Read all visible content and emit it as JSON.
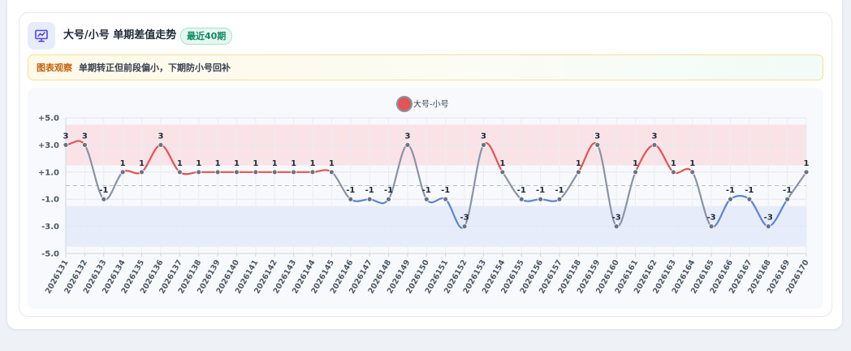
{
  "header": {
    "title": "大号/小号 单期差值走势",
    "badge": "最近40期",
    "icon": "presentation-chart-icon"
  },
  "observation": {
    "label": "图表观察",
    "text": "单期转正但前段偏小，下期防小号回补"
  },
  "colors": {
    "positive": "#e05555",
    "negative": "#5b85d6",
    "neutral": "#8a93a6",
    "positive_band": "#f9e3e6",
    "negative_band": "#e7ecfb",
    "accent": "#6366f1"
  },
  "chart_data": {
    "type": "line",
    "title": "",
    "xlabel": "",
    "ylabel": "",
    "ylim": [
      -5,
      5
    ],
    "yticks": [
      "+5.0",
      "+3.0",
      "+1.0",
      "-1.0",
      "-3.0",
      "-5.0"
    ],
    "ytick_values": [
      5,
      3,
      1,
      -1,
      -3,
      -5
    ],
    "positive_band": [
      1.5,
      4.5
    ],
    "negative_band": [
      -4.5,
      -1.5
    ],
    "reference_line": 0,
    "legend": {
      "label": "大号-小号",
      "position": "top-center"
    },
    "grid": true,
    "categories": [
      "2026131",
      "2026132",
      "2026133",
      "2026134",
      "2026135",
      "2026136",
      "2026137",
      "2026138",
      "2026139",
      "2026140",
      "2026141",
      "2026142",
      "2026143",
      "2026144",
      "2026145",
      "2026146",
      "2026147",
      "2026148",
      "2026149",
      "2026150",
      "2026151",
      "2026152",
      "2026153",
      "2026154",
      "2026155",
      "2026156",
      "2026157",
      "2026158",
      "2026159",
      "2026160",
      "2026161",
      "2026162",
      "2026163",
      "2026164",
      "2026165",
      "2026166",
      "2026167",
      "2026168",
      "2026169",
      "2026170"
    ],
    "series": [
      {
        "name": "大号-小号",
        "values": [
          3,
          3,
          -1,
          1,
          1,
          3,
          1,
          1,
          1,
          1,
          1,
          1,
          1,
          1,
          1,
          -1,
          -1,
          -1,
          3,
          -1,
          -1,
          -3,
          3,
          1,
          -1,
          -1,
          -1,
          1,
          3,
          -3,
          1,
          3,
          1,
          1,
          -3,
          -1,
          -1,
          -3,
          -1,
          1
        ]
      }
    ]
  }
}
